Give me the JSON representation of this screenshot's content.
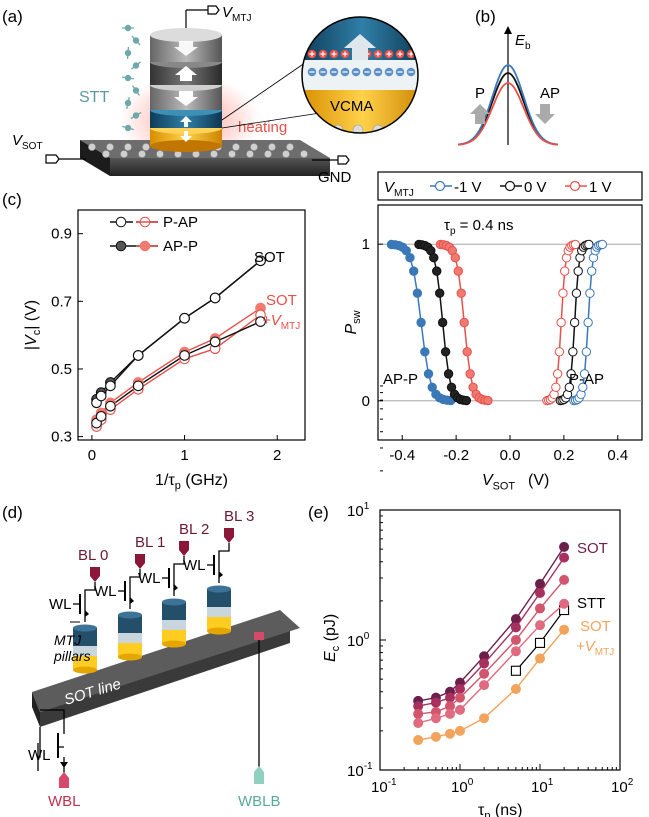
{
  "panels": {
    "a": {
      "label": "(a)",
      "v_mtj": "V",
      "v_mtj_sub": "MTJ",
      "stt": "STT",
      "vcma": "VCMA",
      "heating": "heating",
      "v_sot": "V",
      "v_sot_sub": "SOT",
      "gnd": "GND"
    },
    "b": {
      "label": "(b)",
      "eb": "E",
      "eb_sub": "b",
      "p": "P",
      "ap": "AP"
    },
    "c": {
      "label": "(c)",
      "legend_pap": "P-AP",
      "legend_app": "AP-P",
      "vmtj_label": "V",
      "vmtj_label_sub": "MTJ",
      "legend_m1": "-1 V",
      "legend_0": "0 V",
      "legend_p1": "1 V",
      "tau_annot": "τ",
      "tau_annot_sub": "p",
      "tau_annot_val": " = 0.4 ns",
      "annot_sot": "SOT",
      "annot_sot2": "SOT",
      "annot_vmtj": "+V",
      "annot_vmtj_sub": "MTJ",
      "annot_app": "AP-P",
      "annot_pap": "P-AP"
    },
    "d": {
      "label": "(d)",
      "bl": [
        "BL 0",
        "BL 1",
        "BL 2",
        "BL 3"
      ],
      "wl": "WL",
      "mtj": "MTJ",
      "pillars": "pillars",
      "sot_line": "SOT line",
      "wbl": "WBL",
      "wblb": "WBLB"
    },
    "e": {
      "label": "(e)",
      "sot": "SOT",
      "stt": "STT",
      "sot2": "SOT",
      "vmtj": "+V",
      "vmtj_sub": "MTJ"
    }
  },
  "colors": {
    "black_series": "#111111",
    "gray_series": "#555555",
    "red_series": "#e8504a",
    "salmon_series": "#f07a70",
    "blue_series": "#3a78b8",
    "e_dark": "#6b1f4a",
    "e_mid": "#a8305e",
    "e_pink": "#d2556e",
    "e_orange": "#f2a35c"
  },
  "chart_data": [
    {
      "type": "line",
      "panel": "c-left",
      "xlabel": "1/τp (GHz)",
      "ylabel": "|Vc| (V)",
      "xlim": [
        -0.15,
        2.3
      ],
      "ylim": [
        0.29,
        0.97
      ],
      "xticks": [
        "0",
        "1",
        "2"
      ],
      "yticks": [
        "0.3",
        "0.5",
        "0.7",
        "0.9"
      ],
      "x": [
        0.05,
        0.1,
        0.2,
        0.5,
        1.0,
        1.33,
        1.82
      ],
      "series": [
        {
          "name": "AP-P",
          "group": "SOT",
          "style": "filled-black",
          "values": [
            0.41,
            0.43,
            0.46,
            0.54,
            0.65,
            0.71,
            0.82
          ]
        },
        {
          "name": "P-AP",
          "group": "SOT",
          "style": "open-black",
          "values": [
            0.4,
            0.42,
            0.45,
            0.54,
            0.65,
            0.71,
            0.82
          ]
        },
        {
          "name": "AP-P",
          "group": "SOT +VMTJ",
          "style": "filled-red",
          "values": [
            0.35,
            0.37,
            0.4,
            0.46,
            0.55,
            0.59,
            0.68
          ]
        },
        {
          "name": "P-AP",
          "group": "SOT +VMTJ",
          "style": "open-red",
          "values": [
            0.33,
            0.35,
            0.38,
            0.44,
            0.53,
            0.56,
            0.66
          ]
        },
        {
          "name": "P-AP",
          "group": "SOT +VMTJ",
          "style": "open-black",
          "values": [
            0.34,
            0.36,
            0.39,
            0.45,
            0.54,
            0.58,
            0.64
          ]
        }
      ]
    },
    {
      "type": "line",
      "panel": "c-right",
      "xlabel": "VSOT (V)",
      "ylabel": "Psw",
      "xlim": [
        -0.49,
        0.49
      ],
      "ylim": [
        -0.25,
        1.25
      ],
      "xticks": [
        "-0.4",
        "-0.2",
        "0.0",
        "0.2",
        "0.4"
      ],
      "yticks": [
        "0",
        "1"
      ],
      "series": [
        {
          "name": "-1 V",
          "branch": "AP-P",
          "center": -0.33,
          "width": 0.025
        },
        {
          "name": "0 V",
          "branch": "AP-P",
          "center": -0.25,
          "width": 0.02
        },
        {
          "name": "1 V",
          "branch": "AP-P",
          "center": -0.17,
          "width": 0.02
        },
        {
          "name": "1 V",
          "branch": "P-AP",
          "center": 0.19,
          "width": 0.012
        },
        {
          "name": "0 V",
          "branch": "P-AP",
          "center": 0.24,
          "width": 0.012
        },
        {
          "name": "-1 V",
          "branch": "P-AP",
          "center": 0.29,
          "width": 0.012
        }
      ]
    },
    {
      "type": "line",
      "panel": "e",
      "xlabel": "τp (ns)",
      "ylabel": "Ec (pJ)",
      "xscale": "log",
      "yscale": "log",
      "xlim": [
        0.1,
        100
      ],
      "ylim": [
        0.1,
        10
      ],
      "xticks": [
        "10^-1",
        "10^0",
        "10^1",
        "10^2"
      ],
      "yticks": [
        "10^-1",
        "10^0",
        "10^1"
      ],
      "x": [
        0.3,
        0.5,
        0.75,
        1,
        2,
        5,
        10,
        20
      ],
      "series": [
        {
          "name": "SOT",
          "style": "dark",
          "values": [
            0.34,
            0.36,
            0.4,
            0.47,
            0.75,
            1.45,
            2.7,
            5.2
          ]
        },
        {
          "name": "SOT",
          "style": "mid",
          "values": [
            0.31,
            0.33,
            0.36,
            0.42,
            0.66,
            1.25,
            2.3,
            4.3
          ]
        },
        {
          "name": "SOT",
          "style": "pink",
          "values": [
            0.27,
            0.28,
            0.31,
            0.36,
            0.55,
            1.0,
            1.75,
            2.9
          ]
        },
        {
          "name": "STT",
          "style": "open-square",
          "values": [
            null,
            null,
            null,
            null,
            null,
            0.58,
            0.95,
            1.7
          ]
        },
        {
          "name": "SOT +VMTJ",
          "style": "pink2",
          "values": [
            0.23,
            0.25,
            0.27,
            0.29,
            0.45,
            0.82,
            1.3,
            1.9
          ]
        },
        {
          "name": "SOT +VMTJ",
          "style": "orange",
          "values": [
            0.17,
            0.18,
            0.19,
            0.2,
            0.25,
            0.42,
            0.72,
            1.2
          ]
        }
      ]
    }
  ]
}
